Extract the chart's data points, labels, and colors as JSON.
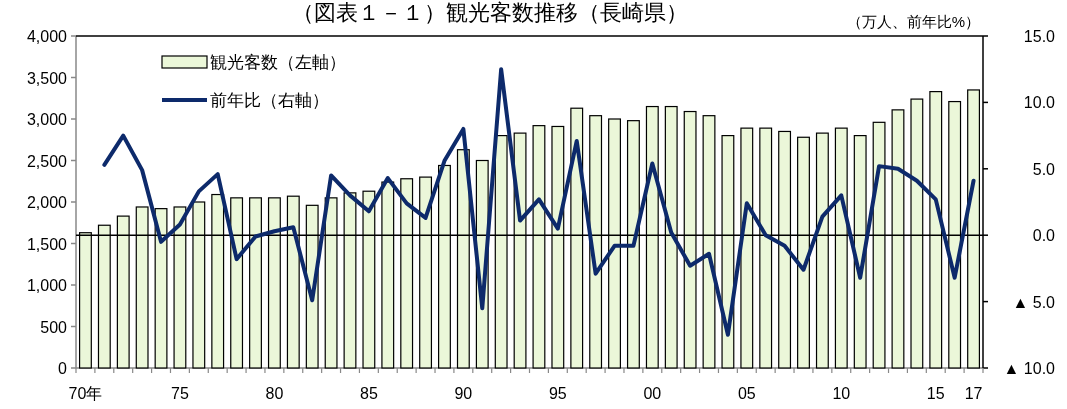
{
  "chart_data": {
    "type": "bar",
    "title": "（図表１－１）観光客数推移（長崎県）",
    "annotations": [
      "（万人、前年比%）"
    ],
    "categories": [
      "70年",
      null,
      null,
      null,
      null,
      "75",
      null,
      null,
      null,
      null,
      "80",
      null,
      null,
      null,
      null,
      "85",
      null,
      null,
      null,
      null,
      "90",
      null,
      null,
      null,
      null,
      "95",
      null,
      null,
      null,
      null,
      "00",
      null,
      null,
      null,
      null,
      "05",
      null,
      null,
      null,
      null,
      "10",
      null,
      null,
      null,
      null,
      "15",
      null,
      "17"
    ],
    "series": [
      {
        "name": "観光客数（左軸）",
        "color": "#ebf7d9",
        "values": [
          1630,
          1720,
          1830,
          1940,
          1920,
          1940,
          2000,
          2090,
          2050,
          2050,
          2050,
          2070,
          1960,
          2050,
          2110,
          2130,
          2240,
          2280,
          2300,
          2440,
          2630,
          2500,
          2800,
          2830,
          2920,
          2910,
          3130,
          3040,
          3000,
          2980,
          3150,
          3150,
          3090,
          3040,
          2800,
          2890,
          2890,
          2850,
          2780,
          2830,
          2890,
          2800,
          2960,
          3110,
          3240,
          3330,
          3210,
          3350
        ]
      },
      {
        "name": "前年比（右軸）",
        "type": "line",
        "axis": "y2",
        "color": "#0d2a6b",
        "values": [
          null,
          5.3,
          7.5,
          4.9,
          -0.5,
          0.8,
          3.3,
          4.6,
          -1.8,
          -0.1,
          0.3,
          0.6,
          -4.9,
          4.5,
          3.0,
          1.8,
          4.3,
          2.4,
          1.3,
          5.6,
          8.0,
          -5.5,
          12.5,
          1.1,
          2.7,
          0.5,
          7.1,
          -2.9,
          -0.8,
          -0.8,
          5.4,
          0.2,
          -2.3,
          -1.4,
          -7.5,
          2.4,
          0.0,
          -0.8,
          -2.6,
          1.4,
          3.0,
          -3.2,
          5.2,
          5.0,
          4.1,
          2.7,
          -3.2,
          4.1
        ]
      }
    ],
    "ylim": [
      0,
      4000
    ],
    "yticks": [
      {
        "value": 0,
        "label": "0"
      },
      {
        "value": 500,
        "label": "500"
      },
      {
        "value": 1000,
        "label": "1,000"
      },
      {
        "value": 1500,
        "label": "1,500"
      },
      {
        "value": 2000,
        "label": "2,000"
      },
      {
        "value": 2500,
        "label": "2,500"
      },
      {
        "value": 3000,
        "label": "3,000"
      },
      {
        "value": 3500,
        "label": "3,500"
      },
      {
        "value": 4000,
        "label": "4,000"
      }
    ],
    "y2lim": [
      -10,
      15
    ],
    "y2ticks": [
      {
        "value": -10,
        "label": "▲ 10.0"
      },
      {
        "value": -5,
        "label": "▲ 5.0"
      },
      {
        "value": 0,
        "label": "0.0"
      },
      {
        "value": 5,
        "label": "5.0"
      },
      {
        "value": 10,
        "label": "10.0"
      },
      {
        "value": 15,
        "label": "15.0"
      }
    ],
    "ref_lines": [
      {
        "axis": "y2",
        "value": 0,
        "color": "#000000"
      }
    ],
    "legend": "top left"
  }
}
